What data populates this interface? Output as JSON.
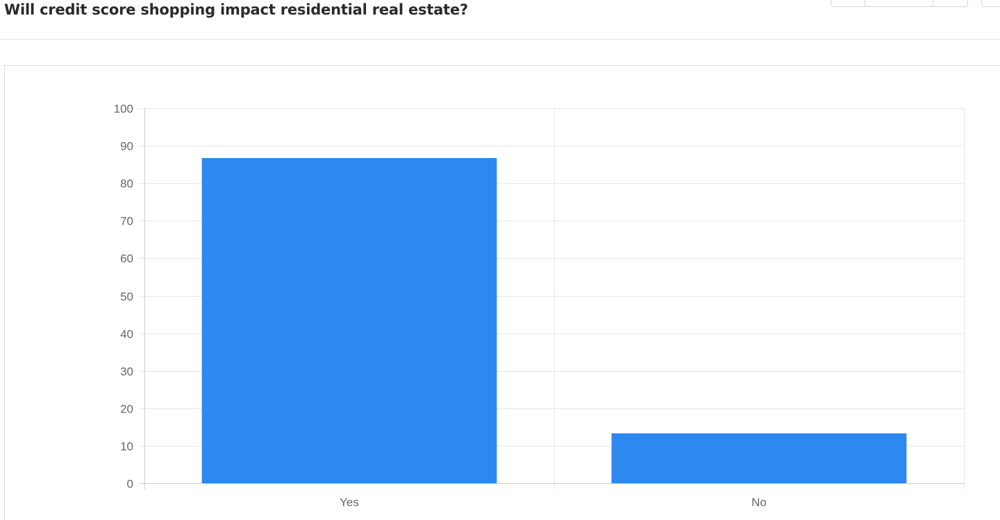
{
  "page": {
    "title": "Will credit score shopping impact residential real estate?"
  },
  "colors": {
    "bar": "#2d88f0",
    "grid": "#e6e6e6",
    "axis": "#cccccc",
    "tick_text": "#666666"
  },
  "chart_data": {
    "type": "bar",
    "title": "",
    "xlabel": "",
    "ylabel": "",
    "categories": [
      "Yes",
      "No"
    ],
    "values": [
      86.7,
      13.3
    ],
    "ylim": [
      0,
      100
    ],
    "yticks": [
      0,
      10,
      20,
      30,
      40,
      50,
      60,
      70,
      80,
      90,
      100
    ],
    "grid": true,
    "legend": "none"
  }
}
